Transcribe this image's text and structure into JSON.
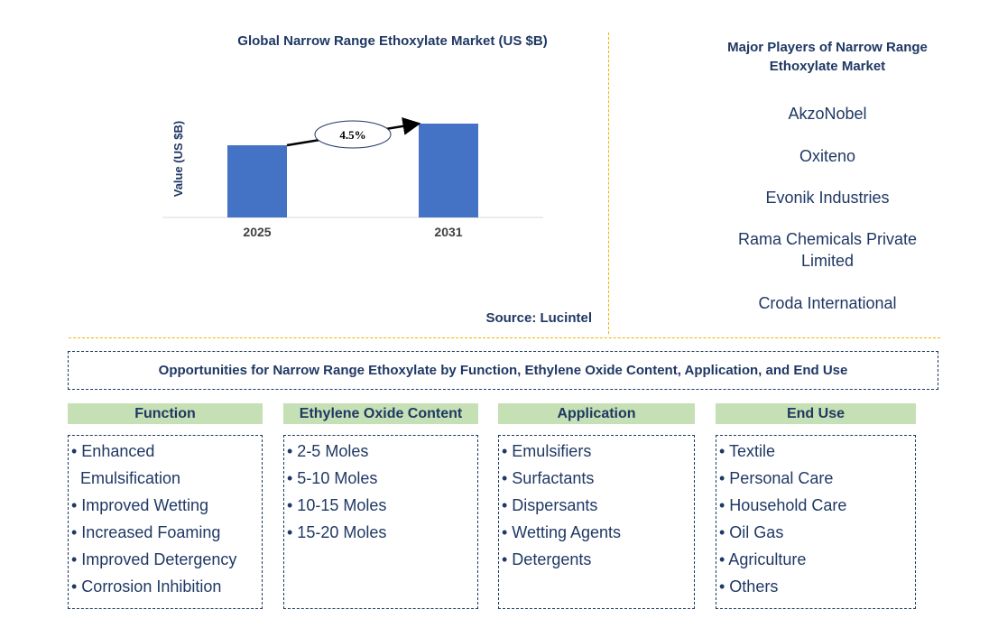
{
  "chart_data": {
    "type": "bar",
    "title": "Global Narrow Range Ethoxylate Market (US $B)",
    "ylabel": "Value (US $B)",
    "xlabel": "",
    "categories": [
      "2025",
      "2031"
    ],
    "values": [
      1.0,
      1.3
    ],
    "ylim": [
      0,
      1.4
    ],
    "grid": false,
    "bar_color": "#4472c4",
    "annotation": "4.5%",
    "source": "Source: Lucintel"
  },
  "players": {
    "title_line1": "Major Players of Narrow Range",
    "title_line2": "Ethoxylate Market",
    "items": [
      {
        "line1": "AkzoNobel"
      },
      {
        "line1": "Oxiteno"
      },
      {
        "line1": "Evonik Industries"
      },
      {
        "line1": "Rama Chemicals Private",
        "line2": "Limited"
      },
      {
        "line1": "Croda International"
      }
    ]
  },
  "opportunities": {
    "title": "Opportunities for Narrow Range Ethoxylate by Function, Ethylene Oxide Content, Application, and End Use"
  },
  "categories": [
    {
      "header": "Function",
      "items": [
        "• Enhanced",
        "  Emulsification",
        "• Improved Wetting",
        "• Increased Foaming",
        "• Improved Detergency",
        "• Corrosion Inhibition"
      ]
    },
    {
      "header": "Ethylene Oxide Content",
      "items": [
        "• 2-5 Moles",
        "• 5-10 Moles",
        "• 10-15 Moles",
        "• 15-20 Moles"
      ]
    },
    {
      "header": "Application",
      "items": [
        "• Emulsifiers",
        "• Surfactants",
        "• Dispersants",
        "• Wetting Agents",
        "• Detergents"
      ]
    },
    {
      "header": "End Use",
      "items": [
        "• Textile",
        "• Personal Care",
        "• Household Care",
        "• Oil Gas",
        "• Agriculture",
        "• Others"
      ]
    }
  ],
  "colors": {
    "text": "#1f3864",
    "header_bg": "#c5e0b4",
    "divider": "#f0b400"
  }
}
